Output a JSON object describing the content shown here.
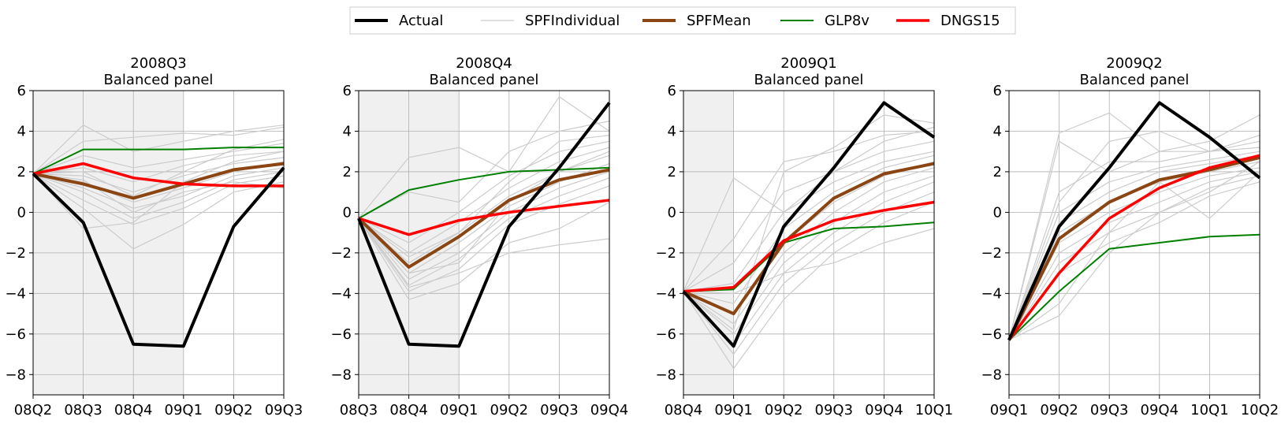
{
  "chart_data": {
    "type": "line",
    "legend": {
      "placement": "top-center",
      "entries": [
        {
          "key": "actual",
          "label": "Actual",
          "color": "#000000"
        },
        {
          "key": "spf_individual",
          "label": "SPFIndividual",
          "color": "#cccccc"
        },
        {
          "key": "spf_mean",
          "label": "SPFMean",
          "color": "#8B4513"
        },
        {
          "key": "glp",
          "label": "GLP8v",
          "color": "#008000"
        },
        {
          "key": "dngs",
          "label": "DNGS15",
          "color": "#ff0000"
        }
      ]
    },
    "panels": [
      {
        "title": "2008Q3",
        "subtitle": "Balanced panel",
        "categories": [
          "08Q2",
          "08Q3",
          "08Q4",
          "09Q1",
          "09Q2",
          "09Q3"
        ],
        "ylim": [
          -9,
          6
        ],
        "yticks": [
          -8,
          -6,
          -4,
          -2,
          0,
          2,
          4,
          6
        ],
        "grid": true,
        "shaded_range": [
          0,
          3
        ],
        "actual": [
          1.9,
          -0.5,
          -6.5,
          -6.6,
          -0.7,
          2.2
        ],
        "spf_mean": [
          1.9,
          1.4,
          0.7,
          1.4,
          2.1,
          2.4
        ],
        "glp": [
          1.9,
          3.1,
          3.1,
          3.1,
          3.2,
          3.2
        ],
        "dngs": [
          1.9,
          2.4,
          1.7,
          1.4,
          1.3,
          1.3
        ],
        "spf_individual": [
          [
            1.9,
            4.3,
            3.0,
            3.5,
            4.0,
            4.3
          ],
          [
            1.9,
            3.5,
            3.7,
            3.9,
            3.8,
            4.2
          ],
          [
            1.9,
            2.8,
            2.2,
            2.6,
            3.0,
            3.4
          ],
          [
            1.9,
            2.2,
            1.5,
            2.3,
            2.8,
            3.0
          ],
          [
            1.9,
            1.8,
            1.0,
            1.8,
            2.4,
            2.7
          ],
          [
            1.9,
            1.5,
            0.5,
            1.2,
            2.0,
            2.5
          ],
          [
            1.9,
            1.2,
            0.2,
            0.8,
            1.8,
            2.2
          ],
          [
            1.9,
            1.0,
            -0.3,
            0.5,
            1.6,
            2.0
          ],
          [
            1.9,
            0.6,
            -0.6,
            0.2,
            1.4,
            1.8
          ],
          [
            1.9,
            0.2,
            -1.8,
            -0.6,
            1.0,
            1.5
          ],
          [
            1.9,
            -0.8,
            -0.5,
            1.5,
            2.5,
            3.0
          ],
          [
            1.9,
            2.0,
            0.8,
            2.0,
            3.1,
            3.6
          ],
          [
            1.9,
            1.6,
            0.0,
            1.0,
            1.5,
            1.2
          ]
        ]
      },
      {
        "title": "2008Q4",
        "subtitle": "Balanced panel",
        "categories": [
          "08Q3",
          "08Q4",
          "09Q1",
          "09Q2",
          "09Q3",
          "09Q4"
        ],
        "ylim": [
          -9,
          6
        ],
        "yticks": [
          -8,
          -6,
          -4,
          -2,
          0,
          2,
          4,
          6
        ],
        "grid": true,
        "shaded_range": [
          0,
          2
        ],
        "actual": [
          -0.3,
          -6.5,
          -6.6,
          -0.7,
          2.2,
          5.4
        ],
        "spf_mean": [
          -0.3,
          -2.7,
          -1.2,
          0.6,
          1.6,
          2.1
        ],
        "glp": [
          -0.3,
          1.1,
          1.6,
          2.0,
          2.1,
          2.2
        ],
        "dngs": [
          -0.3,
          -1.1,
          -0.4,
          0.0,
          0.3,
          0.6
        ],
        "spf_individual": [
          [
            -0.3,
            2.7,
            3.2,
            2.0,
            5.7,
            4.0
          ],
          [
            -0.3,
            1.0,
            0.5,
            3.0,
            4.0,
            4.5
          ],
          [
            -0.3,
            -1.5,
            0.0,
            1.8,
            3.0,
            3.5
          ],
          [
            -0.3,
            -2.0,
            -0.5,
            1.2,
            2.5,
            3.2
          ],
          [
            -0.3,
            -2.5,
            -1.0,
            0.8,
            2.0,
            2.8
          ],
          [
            -0.3,
            -3.0,
            -1.5,
            0.3,
            1.5,
            2.4
          ],
          [
            -0.3,
            -3.3,
            -2.0,
            0.0,
            1.2,
            2.0
          ],
          [
            -0.3,
            -3.6,
            -2.3,
            -0.3,
            0.8,
            1.7
          ],
          [
            -0.3,
            -3.9,
            -2.8,
            -0.6,
            0.4,
            1.3
          ],
          [
            -0.3,
            -4.3,
            -3.5,
            -1.5,
            -0.8,
            0.5
          ],
          [
            -0.3,
            -3.7,
            -3.0,
            -2.0,
            -1.6,
            -1.3
          ],
          [
            -0.3,
            -2.2,
            -1.0,
            1.5,
            3.5,
            3.8
          ],
          [
            -0.3,
            -3.0,
            -2.5,
            0.5,
            2.0,
            3.0
          ]
        ]
      },
      {
        "title": "2009Q1",
        "subtitle": "Balanced panel",
        "categories": [
          "08Q4",
          "09Q1",
          "09Q2",
          "09Q3",
          "09Q4",
          "10Q1"
        ],
        "ylim": [
          -9,
          6
        ],
        "yticks": [
          -8,
          -6,
          -4,
          -2,
          0,
          2,
          4,
          6
        ],
        "grid": true,
        "shaded_range": [
          0,
          1
        ],
        "actual": [
          -3.9,
          -6.6,
          -0.7,
          2.2,
          5.4,
          3.7
        ],
        "spf_mean": [
          -3.9,
          -5.0,
          -1.5,
          0.7,
          1.9,
          2.4
        ],
        "glp": [
          -3.9,
          -3.8,
          -1.5,
          -0.8,
          -0.7,
          -0.5
        ],
        "dngs": [
          -3.9,
          -3.7,
          -1.4,
          -0.4,
          0.1,
          0.5
        ],
        "spf_individual": [
          [
            -3.9,
            1.7,
            0.0,
            2.0,
            3.5,
            4.2
          ],
          [
            -3.9,
            -1.3,
            2.5,
            3.0,
            3.8,
            4.0
          ],
          [
            -3.9,
            -2.5,
            1.0,
            2.0,
            3.0,
            3.5
          ],
          [
            -3.9,
            -3.5,
            0.0,
            1.5,
            2.5,
            3.0
          ],
          [
            -3.9,
            -4.5,
            -0.8,
            1.0,
            2.2,
            2.8
          ],
          [
            -3.9,
            -5.0,
            -1.5,
            0.5,
            1.8,
            2.5
          ],
          [
            -3.9,
            -5.5,
            -2.0,
            0.0,
            1.5,
            2.2
          ],
          [
            -3.9,
            -6.0,
            -2.5,
            -0.5,
            1.0,
            1.8
          ],
          [
            -3.9,
            -6.5,
            -3.0,
            -1.0,
            0.5,
            1.5
          ],
          [
            -3.9,
            -7.0,
            -3.5,
            -1.5,
            0.0,
            1.0
          ],
          [
            -3.9,
            -7.7,
            -4.3,
            -2.0,
            -0.5,
            0.5
          ],
          [
            -3.9,
            -4.0,
            -3.0,
            -2.5,
            -1.5,
            -0.8
          ],
          [
            -3.9,
            -5.8,
            2.0,
            3.2,
            4.8,
            4.4
          ]
        ]
      },
      {
        "title": "2009Q2",
        "subtitle": "Balanced panel",
        "categories": [
          "09Q1",
          "09Q2",
          "09Q3",
          "09Q4",
          "10Q1",
          "10Q2"
        ],
        "ylim": [
          -9,
          6
        ],
        "yticks": [
          -8,
          -6,
          -4,
          -2,
          0,
          2,
          4,
          6
        ],
        "grid": true,
        "shaded_range": null,
        "actual": [
          -6.3,
          -0.7,
          2.2,
          5.4,
          3.7,
          1.7
        ],
        "spf_mean": [
          -6.3,
          -1.3,
          0.5,
          1.6,
          2.1,
          2.7
        ],
        "glp": [
          -6.3,
          -3.9,
          -1.8,
          -1.5,
          -1.2,
          -1.1
        ],
        "dngs": [
          -6.3,
          -3.0,
          -0.3,
          1.2,
          2.2,
          2.8
        ],
        "spf_individual": [
          [
            -6.3,
            3.9,
            4.9,
            3.0,
            3.5,
            4.8
          ],
          [
            -6.3,
            3.5,
            2.0,
            3.0,
            3.0,
            3.5
          ],
          [
            -6.3,
            1.0,
            2.5,
            2.5,
            3.0,
            3.2
          ],
          [
            -6.3,
            0.0,
            1.5,
            2.2,
            2.6,
            3.0
          ],
          [
            -6.3,
            -0.5,
            1.0,
            2.0,
            2.4,
            2.8
          ],
          [
            -6.3,
            -1.0,
            0.5,
            1.5,
            2.0,
            2.5
          ],
          [
            -6.3,
            -1.5,
            0.0,
            1.0,
            1.8,
            2.2
          ],
          [
            -6.3,
            -2.0,
            -0.5,
            0.5,
            1.5,
            2.0
          ],
          [
            -6.3,
            -2.5,
            -1.0,
            0.0,
            1.2,
            1.8
          ],
          [
            -6.3,
            -3.0,
            -1.5,
            -0.5,
            0.8,
            1.5
          ],
          [
            -6.3,
            -4.5,
            -1.0,
            1.5,
            -0.3,
            2.0
          ],
          [
            -6.3,
            -5.1,
            -2.0,
            0.0,
            1.0,
            2.5
          ],
          [
            -6.3,
            0.5,
            3.5,
            4.0,
            3.0,
            3.8
          ]
        ]
      }
    ]
  }
}
